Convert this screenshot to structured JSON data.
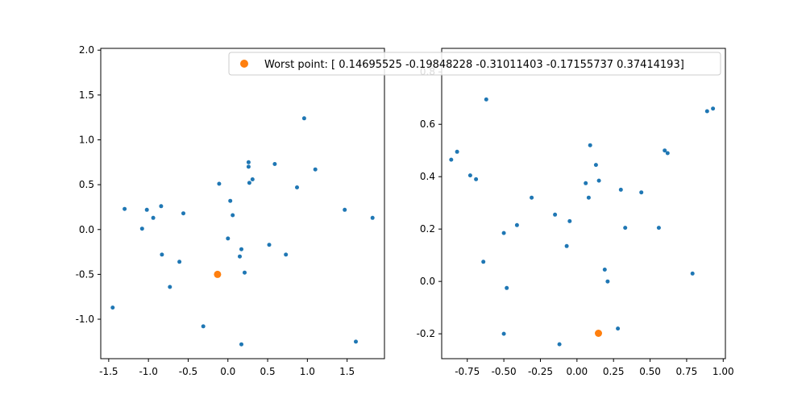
{
  "chart_data": [
    {
      "type": "scatter",
      "title": "",
      "xlabel": "",
      "ylabel": "",
      "xlim": [
        -1.6,
        1.97
      ],
      "ylim": [
        -1.44,
        2.02
      ],
      "x_ticks": [
        "-1.5",
        "-1.0",
        "-0.5",
        "0.0",
        "0.5",
        "1.0",
        "1.5"
      ],
      "x_tick_values": [
        -1.5,
        -1.0,
        -0.5,
        0.0,
        0.5,
        1.0,
        1.5
      ],
      "y_ticks": [
        "-1.0",
        "-0.5",
        "0.0",
        "0.5",
        "1.0",
        "1.5",
        "2.0"
      ],
      "y_tick_values": [
        -1.0,
        -0.5,
        0.0,
        0.5,
        1.0,
        1.5,
        2.0
      ],
      "grid": false,
      "series": [
        {
          "color": "#1f77b4",
          "marker": "small-dot",
          "points": [
            [
              -1.3,
              0.23
            ],
            [
              -1.02,
              0.22
            ],
            [
              -0.94,
              0.13
            ],
            [
              -1.08,
              0.01
            ],
            [
              -0.84,
              0.26
            ],
            [
              -0.83,
              -0.28
            ],
            [
              -0.56,
              0.18
            ],
            [
              -0.61,
              -0.36
            ],
            [
              -0.73,
              -0.64
            ],
            [
              -1.45,
              -0.87
            ],
            [
              -0.31,
              -1.08
            ],
            [
              -0.11,
              0.51
            ],
            [
              0.03,
              0.32
            ],
            [
              0.06,
              0.16
            ],
            [
              0.0,
              -0.1
            ],
            [
              0.15,
              -0.3
            ],
            [
              0.17,
              -0.22
            ],
            [
              0.21,
              -0.48
            ],
            [
              0.17,
              -1.28
            ],
            [
              0.26,
              0.7
            ],
            [
              0.26,
              0.75
            ],
            [
              0.27,
              0.52
            ],
            [
              0.31,
              0.56
            ],
            [
              0.59,
              0.73
            ],
            [
              0.52,
              -0.17
            ],
            [
              0.73,
              -0.28
            ],
            [
              0.96,
              1.24
            ],
            [
              0.87,
              0.47
            ],
            [
              1.1,
              0.67
            ],
            [
              1.47,
              0.22
            ],
            [
              1.82,
              0.13
            ],
            [
              1.61,
              -1.25
            ]
          ]
        },
        {
          "name": "Worst point: [ 0.14695525 -0.19848228 -0.31011403 -0.17155737  0.37414193]",
          "color": "#ff7f0e",
          "marker": "large-dot",
          "points": [
            [
              -0.13,
              -0.5
            ]
          ]
        }
      ],
      "legend": {
        "placement": "top-right",
        "label": "Worst point: [ 0.14695525 -0.19848228 -0.31011403 -0.17155737  0.37414193]",
        "color": "#ff7f0e"
      }
    },
    {
      "type": "scatter",
      "title": "",
      "xlabel": "",
      "ylabel": "",
      "xlim": [
        -0.925,
        1.015
      ],
      "ylim": [
        -0.295,
        0.89
      ],
      "x_ticks": [
        "-0.75",
        "-0.50",
        "-0.25",
        "0.00",
        "0.25",
        "0.50",
        "0.75",
        "1.00"
      ],
      "x_tick_values": [
        -0.75,
        -0.5,
        -0.25,
        0.0,
        0.25,
        0.5,
        0.75,
        1.0
      ],
      "y_ticks": [
        "-0.2",
        "0.0",
        "0.2",
        "0.4",
        "0.6",
        "0.8"
      ],
      "y_tick_values": [
        -0.2,
        0.0,
        0.2,
        0.4,
        0.6,
        0.8
      ],
      "grid": false,
      "series": [
        {
          "color": "#1f77b4",
          "marker": "small-dot",
          "points": [
            [
              -0.62,
              0.695
            ],
            [
              -0.86,
              0.465
            ],
            [
              -0.82,
              0.495
            ],
            [
              -0.73,
              0.405
            ],
            [
              -0.69,
              0.39
            ],
            [
              -0.64,
              0.075
            ],
            [
              -0.5,
              0.185
            ],
            [
              -0.41,
              0.215
            ],
            [
              -0.31,
              0.32
            ],
            [
              -0.48,
              -0.025
            ],
            [
              -0.5,
              -0.2
            ],
            [
              -0.12,
              -0.24
            ],
            [
              -0.15,
              0.255
            ],
            [
              -0.07,
              0.135
            ],
            [
              -0.05,
              0.23
            ],
            [
              0.06,
              0.375
            ],
            [
              0.08,
              0.32
            ],
            [
              0.09,
              0.52
            ],
            [
              0.13,
              0.445
            ],
            [
              0.15,
              0.385
            ],
            [
              0.19,
              0.045
            ],
            [
              0.21,
              0.0
            ],
            [
              0.28,
              -0.18
            ],
            [
              0.3,
              0.35
            ],
            [
              0.33,
              0.205
            ],
            [
              0.44,
              0.34
            ],
            [
              0.56,
              0.205
            ],
            [
              0.6,
              0.5
            ],
            [
              0.62,
              0.49
            ],
            [
              0.79,
              0.03
            ],
            [
              0.89,
              0.65
            ],
            [
              0.93,
              0.66
            ]
          ]
        },
        {
          "color": "#ff7f0e",
          "marker": "large-dot",
          "points": [
            [
              0.147,
              -0.198
            ]
          ]
        }
      ]
    }
  ]
}
